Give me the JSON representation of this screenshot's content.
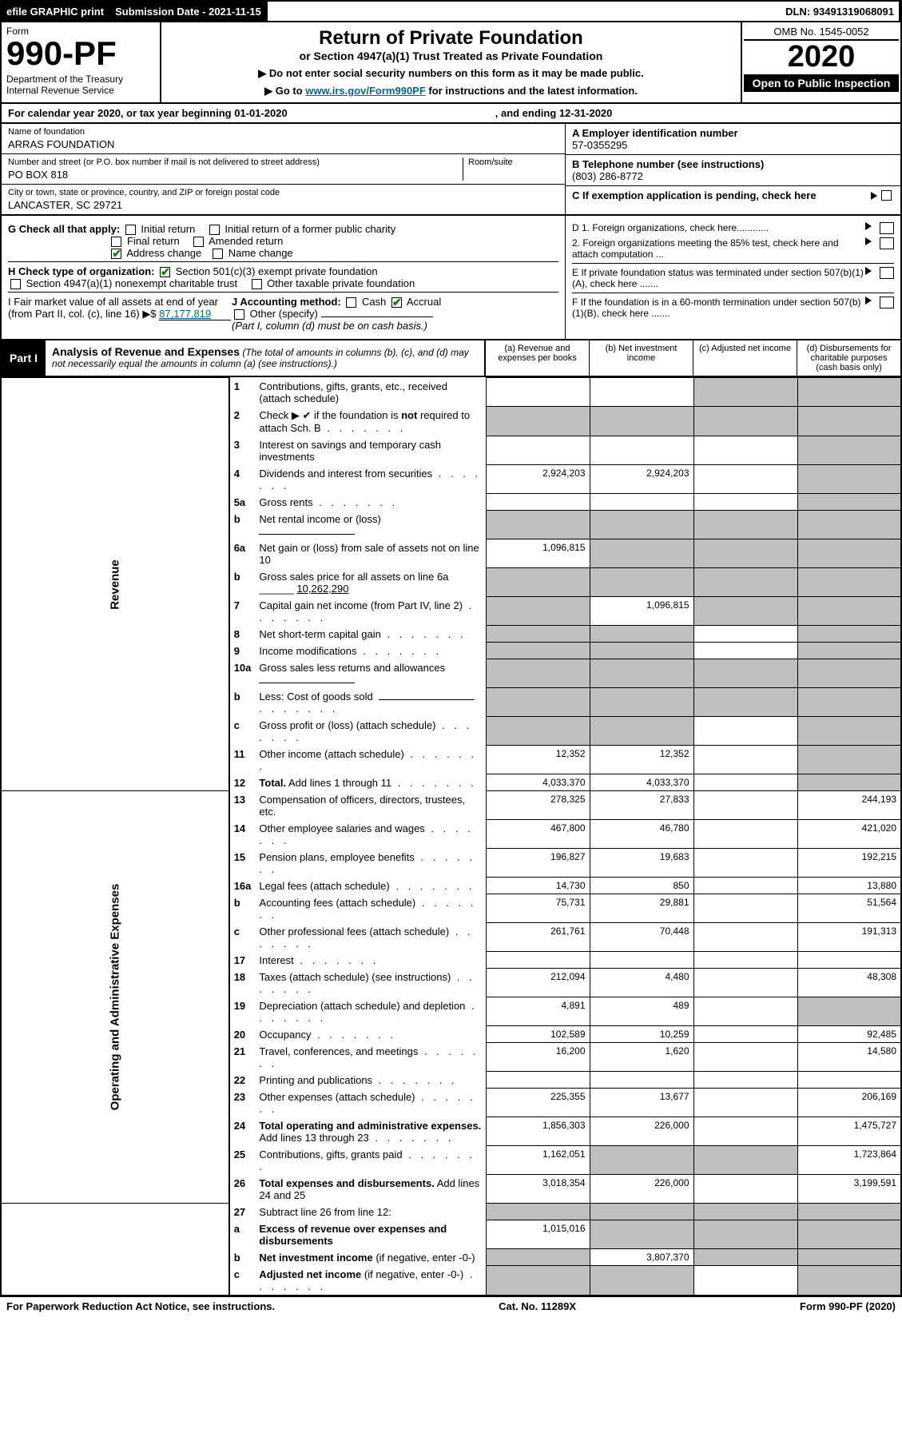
{
  "topbar": {
    "efile": "efile GRAPHIC print",
    "submission_label": "Submission Date - 2021-11-15",
    "dln": "DLN: 93491319068091"
  },
  "header": {
    "form_word": "Form",
    "form_num": "990-PF",
    "dept": "Department of the Treasury\nInternal Revenue Service",
    "title": "Return of Private Foundation",
    "subtitle": "or Section 4947(a)(1) Trust Treated as Private Foundation",
    "note1": "▶ Do not enter social security numbers on this form as it may be made public.",
    "note2_pre": "▶ Go to ",
    "note2_link": "www.irs.gov/Form990PF",
    "note2_post": " for instructions and the latest information.",
    "omb": "OMB No. 1545-0052",
    "year": "2020",
    "open": "Open to Public Inspection"
  },
  "calendar": {
    "line": "For calendar year 2020, or tax year beginning 01-01-2020",
    "ending": ", and ending 12-31-2020"
  },
  "id": {
    "name_label": "Name of foundation",
    "name": "ARRAS FOUNDATION",
    "addr_label": "Number and street (or P.O. box number if mail is not delivered to street address)",
    "addr": "PO BOX 818",
    "room_label": "Room/suite",
    "city_label": "City or town, state or province, country, and ZIP or foreign postal code",
    "city": "LANCASTER, SC  29721",
    "a_label": "A Employer identification number",
    "a_val": "57-0355295",
    "b_label": "B Telephone number (see instructions)",
    "b_val": "(803) 286-8772",
    "c_label": "C If exemption application is pending, check here"
  },
  "checks": {
    "g_label": "G Check all that apply:",
    "g_opts": [
      "Initial return",
      "Initial return of a former public charity",
      "Final return",
      "Amended return",
      "Address change",
      "Name change"
    ],
    "h_label": "H Check type of organization:",
    "h_opts": [
      "Section 501(c)(3) exempt private foundation",
      "Section 4947(a)(1) nonexempt charitable trust",
      "Other taxable private foundation"
    ],
    "i_label": "I Fair market value of all assets at end of year (from Part II, col. (c), line 16) ▶$",
    "i_val": "87,177,819",
    "j_label": "J Accounting method:",
    "j_opts": [
      "Cash",
      "Accrual",
      "Other (specify)"
    ],
    "j_note": "(Part I, column (d) must be on cash basis.)",
    "d1": "D 1. Foreign organizations, check here............",
    "d2": "2. Foreign organizations meeting the 85% test, check here and attach computation ...",
    "e": "E  If private foundation status was terminated under section 507(b)(1)(A), check here .......",
    "f": "F  If the foundation is in a 60-month termination under section 507(b)(1)(B), check here .......",
    "g_checked": [
      false,
      false,
      false,
      false,
      true,
      false
    ],
    "h_checked": [
      true,
      false,
      false
    ],
    "j_checked": [
      false,
      true
    ]
  },
  "part1": {
    "tag": "Part I",
    "title": "Analysis of Revenue and Expenses",
    "sub": "(The total of amounts in columns (b), (c), and (d) may not necessarily equal the amounts in column (a) (see instructions).)",
    "cols": [
      "(a)  Revenue and expenses per books",
      "(b)  Net investment income",
      "(c)  Adjusted net income",
      "(d)  Disbursements for charitable purposes (cash basis only)"
    ]
  },
  "sides": {
    "revenue": "Revenue",
    "expenses": "Operating and Administrative Expenses"
  },
  "rows": [
    {
      "n": "1",
      "d": "Contributions, gifts, grants, etc., received (attach schedule)",
      "a": "",
      "b": "",
      "c": "shade",
      "dcol": "shade"
    },
    {
      "n": "2",
      "d": "Check ▶ ✔ if the foundation is <b>not</b> required to attach Sch. B",
      "a": "shade",
      "b": "shade",
      "c": "shade",
      "dcol": "shade",
      "dots": true
    },
    {
      "n": "3",
      "d": "Interest on savings and temporary cash investments",
      "a": "",
      "b": "",
      "c": "",
      "dcol": "shade"
    },
    {
      "n": "4",
      "d": "Dividends and interest from securities",
      "a": "2,924,203",
      "b": "2,924,203",
      "c": "",
      "dcol": "shade",
      "dots": true
    },
    {
      "n": "5a",
      "d": "Gross rents",
      "a": "",
      "b": "",
      "c": "",
      "dcol": "shade",
      "dots": true
    },
    {
      "n": "b",
      "d": "Net rental income or (loss)",
      "a": "shade",
      "b": "shade",
      "c": "shade",
      "dcol": "shade",
      "inline": true
    },
    {
      "n": "6a",
      "d": "Net gain or (loss) from sale of assets not on line 10",
      "a": "1,096,815",
      "b": "shade",
      "c": "shade",
      "dcol": "shade"
    },
    {
      "n": "b",
      "d": "Gross sales price for all assets on line 6a ______ <u>10,262,290</u>",
      "a": "shade",
      "b": "shade",
      "c": "shade",
      "dcol": "shade"
    },
    {
      "n": "7",
      "d": "Capital gain net income (from Part IV, line 2)",
      "a": "shade",
      "b": "1,096,815",
      "c": "shade",
      "dcol": "shade",
      "dots": true
    },
    {
      "n": "8",
      "d": "Net short-term capital gain",
      "a": "shade",
      "b": "shade",
      "c": "",
      "dcol": "shade",
      "dots": true
    },
    {
      "n": "9",
      "d": "Income modifications",
      "a": "shade",
      "b": "shade",
      "c": "",
      "dcol": "shade",
      "dots": true
    },
    {
      "n": "10a",
      "d": "Gross sales less returns and allowances",
      "a": "shade",
      "b": "shade",
      "c": "shade",
      "dcol": "shade",
      "inline": true
    },
    {
      "n": "b",
      "d": "Less: Cost of goods sold",
      "a": "shade",
      "b": "shade",
      "c": "shade",
      "dcol": "shade",
      "inline": true,
      "dots": true
    },
    {
      "n": "c",
      "d": "Gross profit or (loss) (attach schedule)",
      "a": "shade",
      "b": "shade",
      "c": "",
      "dcol": "shade",
      "dots": true
    },
    {
      "n": "11",
      "d": "Other income (attach schedule)",
      "a": "12,352",
      "b": "12,352",
      "c": "",
      "dcol": "shade",
      "dots": true
    },
    {
      "n": "12",
      "d": "<b>Total.</b> Add lines 1 through 11",
      "a": "4,033,370",
      "b": "4,033,370",
      "c": "",
      "dcol": "shade",
      "dots": true
    }
  ],
  "rows2": [
    {
      "n": "13",
      "d": "Compensation of officers, directors, trustees, etc.",
      "a": "278,325",
      "b": "27,833",
      "c": "",
      "dcol": "244,193"
    },
    {
      "n": "14",
      "d": "Other employee salaries and wages",
      "a": "467,800",
      "b": "46,780",
      "c": "",
      "dcol": "421,020",
      "dots": true
    },
    {
      "n": "15",
      "d": "Pension plans, employee benefits",
      "a": "196,827",
      "b": "19,683",
      "c": "",
      "dcol": "192,215",
      "dots": true
    },
    {
      "n": "16a",
      "d": "Legal fees (attach schedule)",
      "a": "14,730",
      "b": "850",
      "c": "",
      "dcol": "13,880",
      "dots": true
    },
    {
      "n": "b",
      "d": "Accounting fees (attach schedule)",
      "a": "75,731",
      "b": "29,881",
      "c": "",
      "dcol": "51,564",
      "dots": true
    },
    {
      "n": "c",
      "d": "Other professional fees (attach schedule)",
      "a": "261,761",
      "b": "70,448",
      "c": "",
      "dcol": "191,313",
      "dots": true
    },
    {
      "n": "17",
      "d": "Interest",
      "a": "",
      "b": "",
      "c": "",
      "dcol": "",
      "dots": true
    },
    {
      "n": "18",
      "d": "Taxes (attach schedule) (see instructions)",
      "a": "212,094",
      "b": "4,480",
      "c": "",
      "dcol": "48,308",
      "dots": true
    },
    {
      "n": "19",
      "d": "Depreciation (attach schedule) and depletion",
      "a": "4,891",
      "b": "489",
      "c": "",
      "dcol": "shade",
      "dots": true
    },
    {
      "n": "20",
      "d": "Occupancy",
      "a": "102,589",
      "b": "10,259",
      "c": "",
      "dcol": "92,485",
      "dots": true
    },
    {
      "n": "21",
      "d": "Travel, conferences, and meetings",
      "a": "16,200",
      "b": "1,620",
      "c": "",
      "dcol": "14,580",
      "dots": true
    },
    {
      "n": "22",
      "d": "Printing and publications",
      "a": "",
      "b": "",
      "c": "",
      "dcol": "",
      "dots": true
    },
    {
      "n": "23",
      "d": "Other expenses (attach schedule)",
      "a": "225,355",
      "b": "13,677",
      "c": "",
      "dcol": "206,169",
      "dots": true
    },
    {
      "n": "24",
      "d": "<b>Total operating and administrative expenses.</b> Add lines 13 through 23",
      "a": "1,856,303",
      "b": "226,000",
      "c": "",
      "dcol": "1,475,727",
      "dots": true
    },
    {
      "n": "25",
      "d": "Contributions, gifts, grants paid",
      "a": "1,162,051",
      "b": "shade",
      "c": "shade",
      "dcol": "1,723,864",
      "dots": true
    },
    {
      "n": "26",
      "d": "<b>Total expenses and disbursements.</b> Add lines 24 and 25",
      "a": "3,018,354",
      "b": "226,000",
      "c": "",
      "dcol": "3,199,591"
    }
  ],
  "rows3": [
    {
      "n": "27",
      "d": "Subtract line 26 from line 12:",
      "a": "shade",
      "b": "shade",
      "c": "shade",
      "dcol": "shade"
    },
    {
      "n": "a",
      "d": "<b>Excess of revenue over expenses and disbursements</b>",
      "a": "1,015,016",
      "b": "shade",
      "c": "shade",
      "dcol": "shade"
    },
    {
      "n": "b",
      "d": "<b>Net investment income</b> (if negative, enter -0-)",
      "a": "shade",
      "b": "3,807,370",
      "c": "shade",
      "dcol": "shade"
    },
    {
      "n": "c",
      "d": "<b>Adjusted net income</b> (if negative, enter -0-)",
      "a": "shade",
      "b": "shade",
      "c": "",
      "dcol": "shade",
      "dots": true
    }
  ],
  "footer": {
    "left": "For Paperwork Reduction Act Notice, see instructions.",
    "center": "Cat. No. 11289X",
    "right": "Form 990-PF (2020)"
  },
  "colors": {
    "shade": "#bfbfbf",
    "link": "#006699",
    "check": "#008000"
  }
}
